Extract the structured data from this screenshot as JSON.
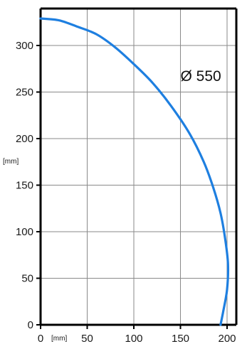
{
  "chart_data": {
    "type": "line",
    "title": "",
    "xlabel": "[mm]",
    "ylabel": "[mm]",
    "xlim": [
      0,
      210
    ],
    "ylim": [
      0,
      335
    ],
    "x_ticks": [
      0,
      50,
      100,
      150,
      200
    ],
    "y_ticks": [
      0,
      50,
      100,
      150,
      200,
      250,
      300
    ],
    "x_tick_labels": [
      "0",
      "50",
      "100",
      "150",
      "200"
    ],
    "y_tick_labels": [
      "0",
      "50",
      "100",
      "150",
      "200",
      "250",
      "300"
    ],
    "grid": true,
    "annotations": [
      {
        "text": "Ø 550",
        "x": 150,
        "y": 268
      }
    ],
    "series": [
      {
        "color": "#1e7fe0",
        "points": [
          [
            0,
            329
          ],
          [
            20,
            327
          ],
          [
            40,
            320
          ],
          [
            60,
            312
          ],
          [
            80,
            298
          ],
          [
            100,
            280
          ],
          [
            120,
            260
          ],
          [
            140,
            235
          ],
          [
            160,
            205
          ],
          [
            175,
            175
          ],
          [
            185,
            148
          ],
          [
            193,
            120
          ],
          [
            198,
            92
          ],
          [
            201,
            65
          ],
          [
            200,
            38
          ],
          [
            196,
            15
          ],
          [
            193,
            0
          ]
        ]
      }
    ]
  }
}
